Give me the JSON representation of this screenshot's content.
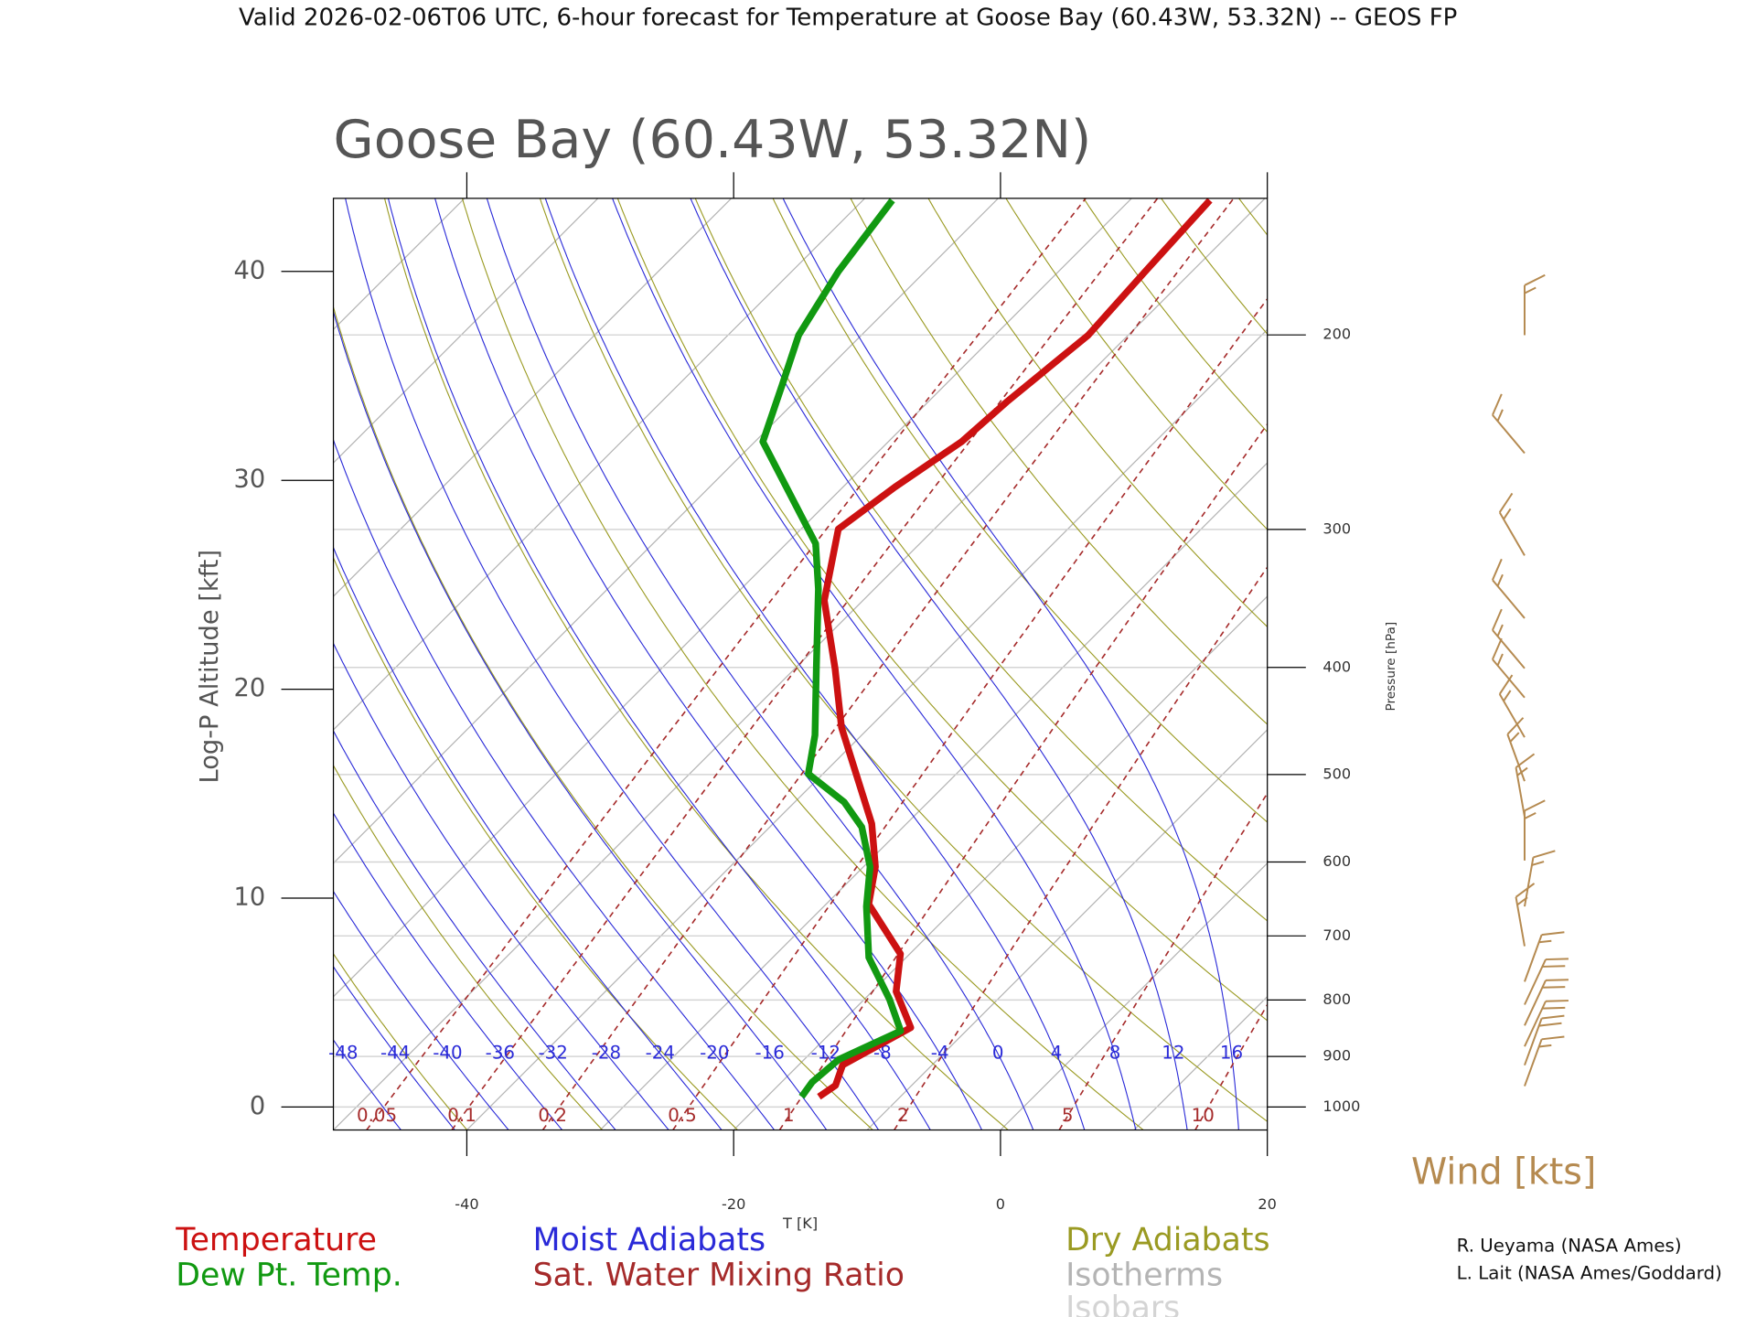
{
  "page_title": "Valid 2026-02-06T06 UTC, 6-hour forecast for Temperature at Goose Bay (60.43W, 53.32N) -- GEOS FP",
  "chart_data": {
    "type": "skewt",
    "title": "Goose Bay (60.43W, 53.32N)",
    "y_label": "Log-P Altitude [kft]",
    "x_label": "T [K]",
    "xlim": [
      -50,
      20
    ],
    "xticks": [
      -40,
      -20,
      0,
      20
    ],
    "ylim": [
      -1.1,
      43.5
    ],
    "yticks": [
      0,
      10,
      20,
      30,
      40
    ],
    "pressure_label": "Pressure [hPa]",
    "pressure_ticks": [
      1000,
      900,
      800,
      700,
      600,
      500,
      400,
      300,
      200
    ],
    "series": [
      {
        "name": "Temperature",
        "color": "#cc1111",
        "values": [
          -16.1,
          -15.7,
          -16.7,
          -14.4,
          -18.2,
          -20.7,
          -26.8,
          -29.1,
          -32.6,
          -42.1,
          -47.0,
          -52.9,
          -57.2,
          -56.1,
          -54.5,
          -54.1,
          -53.0,
          -53.5,
          -54.0
        ],
        "altitude": [
          0.49,
          1.03,
          2.01,
          3.8,
          5.53,
          7.33,
          9.71,
          11.5,
          13.56,
          18.18,
          21.0,
          24.25,
          27.67,
          29.68,
          31.85,
          33.75,
          36.95,
          39.99,
          43.41
        ]
      },
      {
        "name": "Dew Pt. Temp.",
        "color": "#119911",
        "values": [
          -17.4,
          -17.7,
          -17.4,
          -14.9,
          -18.1,
          -22.8,
          -26.8,
          -29.5,
          -33.1,
          -36.3,
          -41.1,
          -43.5,
          -48.4,
          -54.2,
          -57.8,
          -69.4,
          -72.2,
          -74.7,
          -76.5,
          -77.8
        ],
        "altitude": [
          0.49,
          1.19,
          2.28,
          3.64,
          5.15,
          7.16,
          9.6,
          11.5,
          13.4,
          14.6,
          15.95,
          17.8,
          21.0,
          24.8,
          26.97,
          31.85,
          34.56,
          36.95,
          39.99,
          43.41
        ]
      }
    ],
    "moist_adiabats": {
      "name": "Moist Adiabats",
      "color": "#2a2ad8",
      "values": [
        -48,
        -44,
        -40,
        -36,
        -32,
        -28,
        -24,
        -20,
        -16,
        -12,
        -8,
        -4,
        0,
        4,
        8,
        12,
        16
      ]
    },
    "mixing_ratio": {
      "name": "Sat. Water Mixing Ratio",
      "color": "#a52a2a",
      "values": [
        0.05,
        0.1,
        0.2,
        0.5,
        1,
        2,
        5,
        10
      ]
    },
    "dry_adiabats": {
      "name": "Dry Adiabats",
      "color": "#9a9a22"
    },
    "isotherms": {
      "name": "Isotherms",
      "color": "#b4b4b4"
    },
    "isobars": {
      "name": "Isobars",
      "color": "#d4d4d4"
    },
    "wind": {
      "title": "Wind [kts]",
      "color": "#b58a50",
      "altitude": [
        36.95,
        31.3,
        26.4,
        23.4,
        21.0,
        19.6,
        17.7,
        15.6,
        13.9,
        11.8,
        9.6,
        7.7,
        6.0,
        4.9,
        3.9,
        2.9,
        2.0,
        1.0
      ],
      "direction": [
        0,
        320,
        330,
        320,
        320,
        320,
        330,
        340,
        350,
        0,
        10,
        350,
        20,
        25,
        25,
        25,
        20,
        20
      ],
      "speed": [
        15,
        15,
        15,
        15,
        15,
        15,
        15,
        15,
        15,
        15,
        15,
        15,
        15,
        20,
        20,
        20,
        20,
        15
      ]
    },
    "credits": [
      "R. Ueyama (NASA Ames)",
      "L. Lait (NASA Ames/Goddard)"
    ]
  }
}
